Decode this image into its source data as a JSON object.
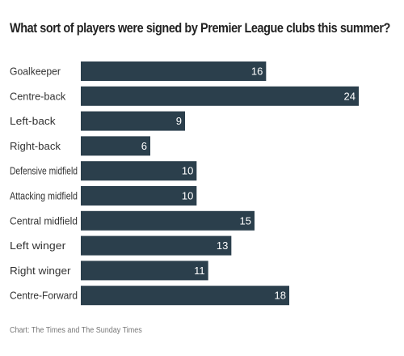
{
  "title": "What sort of players were signed by Premier League clubs this summer?",
  "source": "Chart: The Times and The Sunday Times",
  "colors": {
    "bar": "#2b3f4c",
    "label": "#333333",
    "value_text": "#ffffff"
  },
  "chart_data": {
    "type": "bar",
    "orientation": "horizontal",
    "title": "What sort of players were signed by Premier League clubs this summer?",
    "xlabel": "",
    "ylabel": "",
    "xlim": [
      0,
      24
    ],
    "grid": false,
    "categories": [
      "Goalkeeper",
      "Centre-back",
      "Left-back",
      "Right-back",
      "Defensive midfield",
      "Attacking midfield",
      "Central midfield",
      "Left winger",
      "Right winger",
      "Centre-Forward"
    ],
    "values": [
      16,
      24,
      9,
      6,
      10,
      10,
      15,
      13,
      11,
      18
    ]
  }
}
